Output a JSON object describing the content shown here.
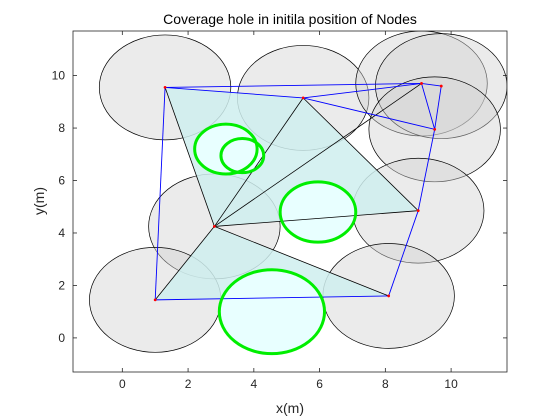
{
  "chart_data": {
    "type": "scatter",
    "title": "Coverage hole in initila position of Nodes",
    "xlabel": "x(m)",
    "ylabel": "y(m)",
    "xlim": [
      -1.5,
      11.7
    ],
    "ylim": [
      -1.3,
      11.7
    ],
    "xticks": [
      0,
      2,
      4,
      6,
      8,
      10
    ],
    "yticks": [
      0,
      2,
      4,
      6,
      8,
      10
    ],
    "sensing_radius": 2.0,
    "grid": false,
    "colors": {
      "sensing_fill": "#d3d3d3",
      "sensing_stroke": "#000000",
      "triangle_fill": "#cfeeee",
      "hull_edge": "#0000ff",
      "triangle_edge": "#000000",
      "hole_stroke": "#00ee00",
      "hole_fill": "#e8ffff",
      "node": "#ff0000"
    },
    "nodes": [
      {
        "x": 1.3,
        "y": 9.55
      },
      {
        "x": 5.5,
        "y": 9.15
      },
      {
        "x": 9.1,
        "y": 9.7
      },
      {
        "x": 9.7,
        "y": 9.6
      },
      {
        "x": 9.5,
        "y": 7.95
      },
      {
        "x": 2.8,
        "y": 4.25
      },
      {
        "x": 9.0,
        "y": 4.85
      },
      {
        "x": 1.0,
        "y": 1.45
      },
      {
        "x": 8.1,
        "y": 1.6
      }
    ],
    "hull_edges": [
      [
        0,
        1
      ],
      [
        1,
        2
      ],
      [
        0,
        2
      ],
      [
        2,
        3
      ],
      [
        3,
        4
      ],
      [
        2,
        4
      ],
      [
        4,
        6
      ],
      [
        1,
        4
      ],
      [
        0,
        7
      ],
      [
        7,
        8
      ],
      [
        8,
        6
      ]
    ],
    "triangulation_edges": [
      [
        0,
        5
      ],
      [
        1,
        5
      ],
      [
        5,
        6
      ],
      [
        5,
        7
      ],
      [
        5,
        8
      ],
      [
        2,
        5
      ],
      [
        1,
        6
      ]
    ],
    "shaded_triangles": [
      [
        0,
        1,
        5
      ],
      [
        1,
        6,
        5
      ],
      [
        5,
        7,
        8
      ]
    ],
    "coverage_holes": [
      {
        "cx": 3.15,
        "cy": 7.2,
        "r": 0.95
      },
      {
        "cx": 3.65,
        "cy": 6.95,
        "r": 0.65
      },
      {
        "cx": 5.95,
        "cy": 4.8,
        "r": 1.15
      },
      {
        "cx": 4.55,
        "cy": 1.0,
        "r": 1.6
      }
    ]
  }
}
